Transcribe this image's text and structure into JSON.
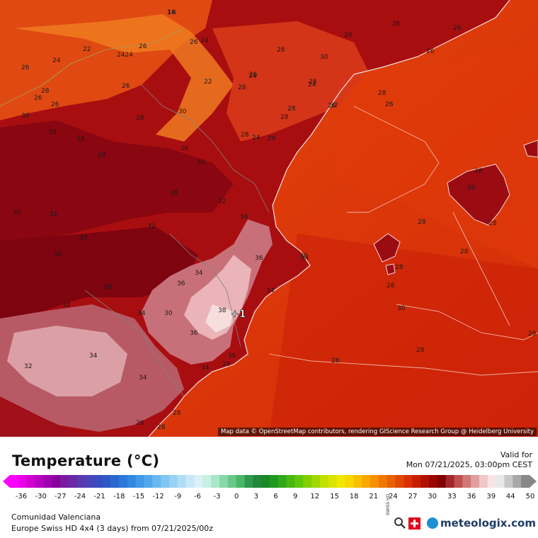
{
  "map": {
    "attribution": "Map data © OpenStreetMap contributors, rendering GIScience Research Group @ Heidelberg University",
    "marker_label": "+1",
    "isotherm_labels": [
      {
        "text": "16"
      },
      {
        "text": "22"
      },
      {
        "text": "24"
      },
      {
        "text": "2424"
      },
      {
        "text": "26"
      },
      {
        "text": "26"
      },
      {
        "text": "24"
      },
      {
        "text": "26"
      },
      {
        "text": "26"
      },
      {
        "text": "22"
      },
      {
        "text": "24"
      },
      {
        "text": "28"
      },
      {
        "text": "26"
      },
      {
        "text": "26"
      },
      {
        "text": "30"
      },
      {
        "text": "28"
      },
      {
        "text": "30"
      },
      {
        "text": "28"
      },
      {
        "text": "28"
      },
      {
        "text": "26"
      },
      {
        "text": "24"
      },
      {
        "text": "28"
      },
      {
        "text": "26"
      },
      {
        "text": "28"
      },
      {
        "text": "28"
      },
      {
        "text": "28"
      },
      {
        "text": "26"
      },
      {
        "text": "28"
      },
      {
        "text": "24"
      },
      {
        "text": "28"
      },
      {
        "text": "28"
      },
      {
        "text": "32"
      },
      {
        "text": "30"
      },
      {
        "text": "30"
      },
      {
        "text": "28"
      },
      {
        "text": "28"
      },
      {
        "text": "30"
      },
      {
        "text": "26"
      },
      {
        "text": "26"
      },
      {
        "text": "26"
      },
      {
        "text": "26"
      },
      {
        "text": "28"
      },
      {
        "text": "28"
      },
      {
        "text": "30"
      },
      {
        "text": "32"
      },
      {
        "text": "28"
      },
      {
        "text": "30"
      },
      {
        "text": "32"
      },
      {
        "text": "32"
      },
      {
        "text": "34"
      },
      {
        "text": "32"
      },
      {
        "text": "36"
      },
      {
        "text": "34"
      },
      {
        "text": "36"
      },
      {
        "text": "34"
      },
      {
        "text": "30"
      },
      {
        "text": "32"
      },
      {
        "text": "28"
      },
      {
        "text": "28"
      },
      {
        "text": "30"
      },
      {
        "text": "34"
      },
      {
        "text": "38"
      },
      {
        "text": "36"
      },
      {
        "text": "36"
      },
      {
        "text": "34"
      },
      {
        "text": "34"
      },
      {
        "text": "32"
      },
      {
        "text": "34"
      },
      {
        "text": "34"
      },
      {
        "text": "34"
      },
      {
        "text": "28"
      },
      {
        "text": "26"
      },
      {
        "text": "28"
      },
      {
        "text": "28"
      },
      {
        "text": "28"
      },
      {
        "text": "28"
      },
      {
        "text": "28"
      },
      {
        "text": "28"
      },
      {
        "text": "28"
      },
      {
        "text": "30"
      },
      {
        "text": "28"
      }
    ]
  },
  "legend": {
    "title": "Temperature (°C)",
    "valid_label": "Valid for",
    "valid_time": "Mon 07/21/2025, 03:00pm CEST",
    "ticks": [
      "-36",
      "-30",
      "-27",
      "-24",
      "-21",
      "-18",
      "-15",
      "-12",
      "-9",
      "-6",
      "-3",
      "0",
      "3",
      "6",
      "9",
      "12",
      "15",
      "18",
      "21",
      "24",
      "27",
      "30",
      "33",
      "36",
      "39",
      "44",
      "50"
    ],
    "colors": [
      "#ff00ff",
      "#e800e8",
      "#d000d0",
      "#b800c0",
      "#a000b0",
      "#8a009e",
      "#7a1aa0",
      "#6a2aa8",
      "#5a3ab0",
      "#4a44b8",
      "#3a4cc0",
      "#2e58c8",
      "#2a68d0",
      "#2a78d8",
      "#3088e0",
      "#4098e6",
      "#50a8ec",
      "#68b8f0",
      "#80c6f2",
      "#98d2f4",
      "#b0def6",
      "#c8e8f8",
      "#dcf0fa",
      "#c8f0e0",
      "#a8e8c8",
      "#88d8a8",
      "#68c888",
      "#48b868",
      "#309850",
      "#208838",
      "#188828",
      "#209820",
      "#30a818",
      "#48b810",
      "#60c808",
      "#80d000",
      "#a0d800",
      "#c0e000",
      "#d8e400",
      "#f0e800",
      "#f8d800",
      "#f8c000",
      "#f8a800",
      "#f89000",
      "#f07800",
      "#e86000",
      "#e04800",
      "#d83000",
      "#c81e00",
      "#b01000",
      "#980800",
      "#800000",
      "#a02828",
      "#c05050",
      "#d07878",
      "#e0a0a0",
      "#f0c8c8",
      "#f8e4e4",
      "#e8e8e8",
      "#c8c8c8",
      "#a8a8a8",
      "#888888"
    ],
    "region": "Comunidad Valenciana",
    "model": "Europe Swiss HD 4x4 (3 days) from  07/21/2025/00z",
    "brand": "meteologix.com",
    "swiss_badge": "SWISS HD"
  }
}
